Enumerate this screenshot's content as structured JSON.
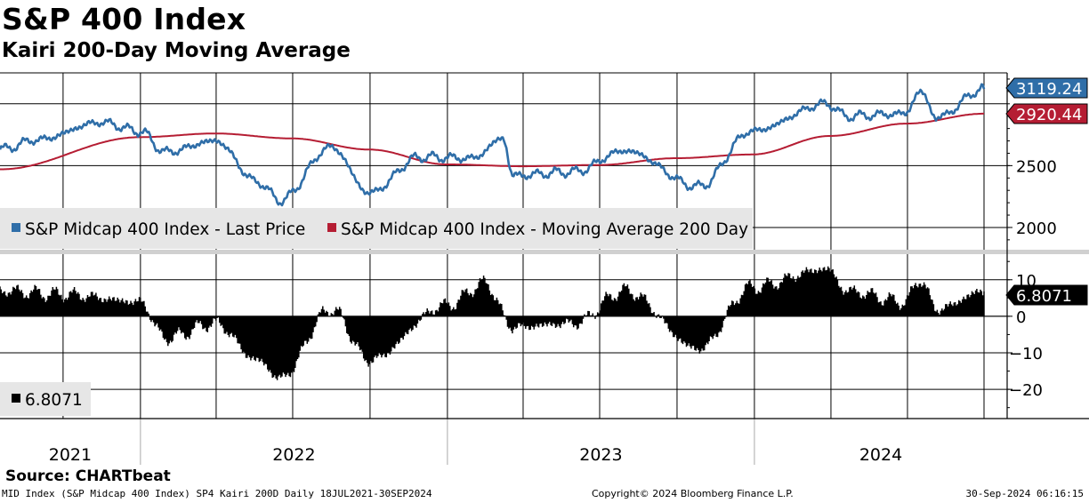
{
  "header": {
    "title": "S&P 400 Index",
    "subtitle": "Kairi 200-Day Moving Average"
  },
  "footer": {
    "source": "Source: CHARTbeat",
    "left": "MID Index (S&P Midcap 400 Index) SP4 Kairi 200D  Daily 18JUL2021-30SEP2024",
    "center": "Copyright© 2024 Bloomberg Finance L.P.",
    "right": "30-Sep-2024 06:16:15"
  },
  "colors": {
    "price": "#2f6ea8",
    "ma": "#b51d33",
    "kairi": "#000000",
    "grid": "#000000"
  },
  "chart_data": [
    {
      "type": "line",
      "panel": "upper",
      "ylim": [
        1820,
        3250
      ],
      "yticks": [
        2000,
        2500
      ],
      "xticks": [
        "2021",
        "2022",
        "2023",
        "2024"
      ],
      "x_range": [
        "2021-07-18",
        "2024-09-30"
      ],
      "legend": [
        "S&P Midcap 400 Index - Last Price",
        "S&P Midcap 400 Index - Moving Average 200 Day"
      ],
      "last_values": {
        "price": "3119.24",
        "ma": "2920.44"
      },
      "series": [
        {
          "name": "S&P Midcap 400 Index - Last Price",
          "x": [
            "2021-07-18",
            "2021-09-01",
            "2021-11-15",
            "2021-12-31",
            "2022-01-31",
            "2022-03-31",
            "2022-05-20",
            "2022-06-16",
            "2022-08-16",
            "2022-09-30",
            "2022-11-30",
            "2023-01-31",
            "2023-03-08",
            "2023-03-20",
            "2023-05-31",
            "2023-07-31",
            "2023-10-27",
            "2023-12-29",
            "2024-03-28",
            "2024-04-19",
            "2024-06-28",
            "2024-07-16",
            "2024-08-05",
            "2024-09-30"
          ],
          "values": [
            2630,
            2710,
            2850,
            2780,
            2610,
            2700,
            2370,
            2220,
            2650,
            2280,
            2570,
            2560,
            2720,
            2420,
            2450,
            2620,
            2330,
            2780,
            3000,
            2900,
            2920,
            3100,
            2890,
            3119
          ]
        },
        {
          "name": "S&P Midcap 400 Index - Moving Average 200 Day",
          "x": [
            "2021-07-18",
            "2021-12-31",
            "2022-03-31",
            "2022-06-30",
            "2022-09-30",
            "2022-12-31",
            "2023-03-31",
            "2023-06-30",
            "2023-09-30",
            "2023-12-29",
            "2024-03-31",
            "2024-06-30",
            "2024-09-30"
          ],
          "values": [
            2470,
            2730,
            2760,
            2720,
            2630,
            2510,
            2495,
            2505,
            2560,
            2590,
            2740,
            2840,
            2920
          ]
        }
      ]
    },
    {
      "type": "bar",
      "panel": "lower",
      "ylim": [
        -28,
        17
      ],
      "yticks": [
        10,
        0,
        -10,
        -20
      ],
      "legend": [
        "6.8071"
      ],
      "last_value": "6.8071",
      "series": [
        {
          "name": "Kairi 200D",
          "x": [
            "2021-07-18",
            "2021-10-01",
            "2021-12-31",
            "2022-01-31",
            "2022-03-31",
            "2022-05-20",
            "2022-06-16",
            "2022-08-16",
            "2022-09-30",
            "2022-12-31",
            "2023-02-15",
            "2023-03-20",
            "2023-05-31",
            "2023-07-31",
            "2023-10-27",
            "2023-12-29",
            "2024-03-28",
            "2024-04-19",
            "2024-06-28",
            "2024-07-16",
            "2024-08-05",
            "2024-09-30"
          ],
          "values": [
            7,
            6,
            4,
            -6,
            -2,
            -12,
            -17,
            2,
            -12,
            3,
            9,
            -3,
            -2,
            7,
            -9,
            8,
            13,
            7,
            4,
            10,
            2,
            6.8071
          ]
        }
      ]
    }
  ]
}
